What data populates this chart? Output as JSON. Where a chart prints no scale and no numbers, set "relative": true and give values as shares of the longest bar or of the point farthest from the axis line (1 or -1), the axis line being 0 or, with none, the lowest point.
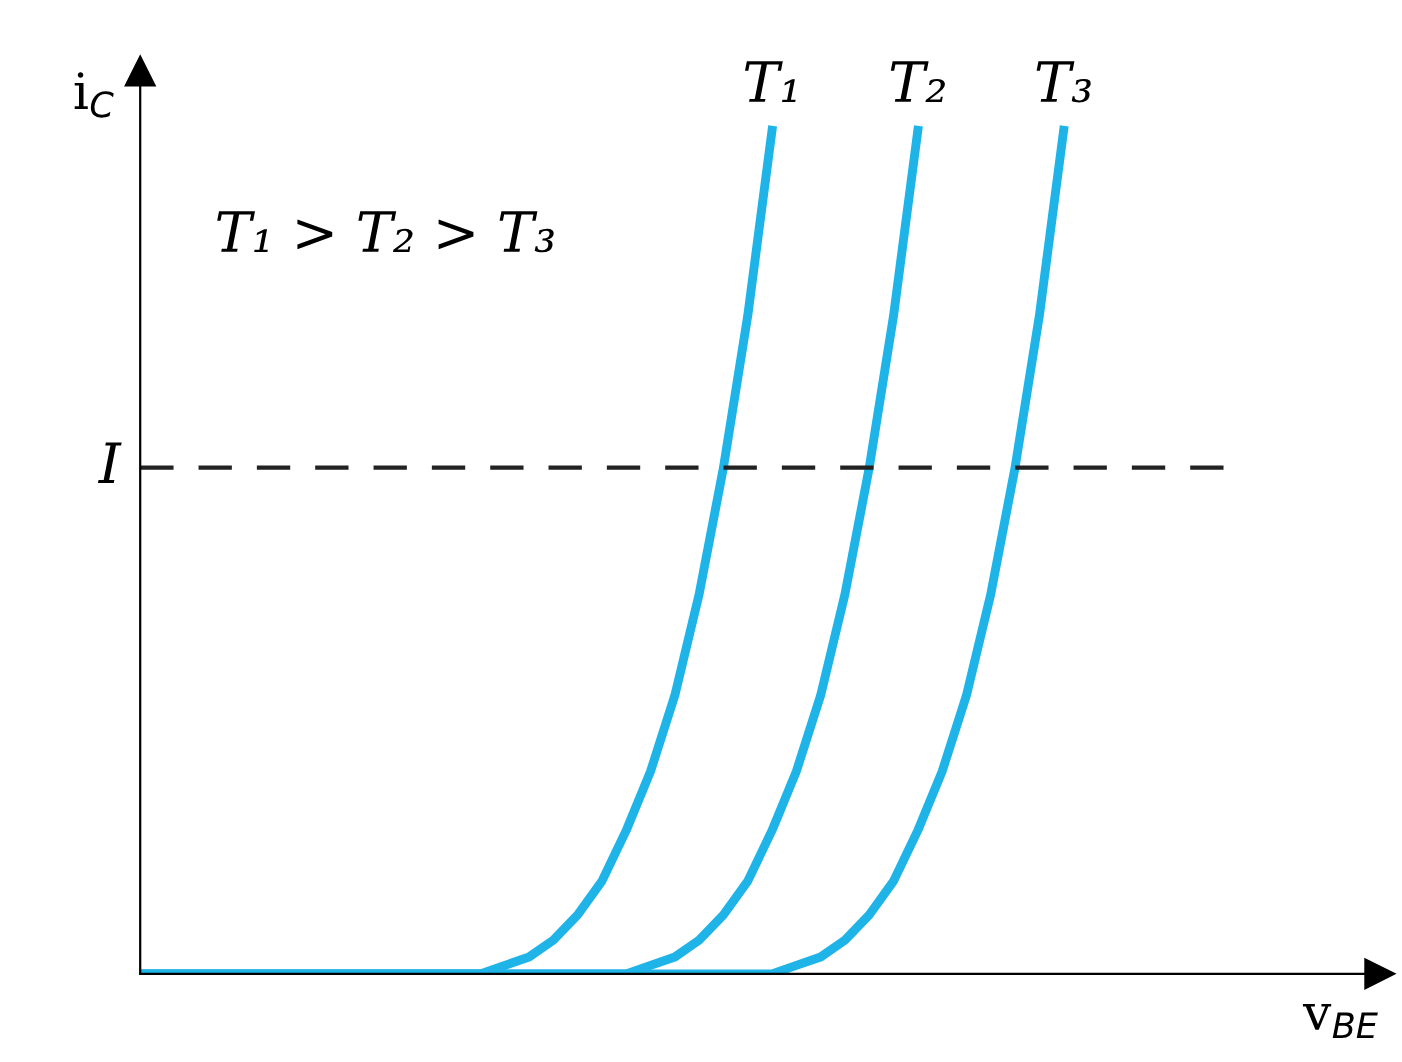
{
  "chart_data": {
    "type": "line",
    "relative": true,
    "xlabel": "v$_{BE}$",
    "ylabel": "i$_{C}$",
    "categories": [
      null,
      null,
      null,
      null,
      null,
      null,
      null,
      null,
      null,
      null,
      null,
      null,
      null,
      null,
      null,
      null,
      null,
      null,
      null,
      null,
      null,
      null,
      null,
      null,
      null,
      null,
      null,
      null,
      null,
      null,
      null,
      null,
      null,
      null,
      null,
      null,
      null,
      null,
      null,
      null,
      null,
      null,
      null,
      null,
      null,
      null,
      null,
      null,
      null,
      null,
      null,
      null
    ],
    "series": [
      {
        "name": "T₁",
        "color": "#1fb4e8",
        "values": [
          0,
          0,
          0,
          0,
          0,
          0,
          0,
          0,
          0,
          0,
          0,
          0,
          0,
          0,
          0,
          0.01,
          0.02,
          0.04,
          0.07,
          0.11,
          0.17,
          0.24,
          0.33,
          0.45,
          0.6,
          0.78,
          1,
          null,
          null,
          null,
          null,
          null,
          null,
          null,
          null,
          null,
          null,
          null,
          null,
          null,
          null,
          null,
          null,
          null,
          null,
          null,
          null,
          null,
          null,
          null,
          null,
          null
        ]
      },
      {
        "name": "T₂",
        "color": "#1fb4e8",
        "values": [
          0,
          0,
          0,
          0,
          0,
          0,
          0,
          0,
          0,
          0,
          0,
          0,
          0,
          0,
          0,
          0,
          0,
          0,
          0,
          0,
          0,
          0.01,
          0.02,
          0.04,
          0.07,
          0.11,
          0.17,
          0.24,
          0.33,
          0.45,
          0.6,
          0.78,
          1,
          null,
          null,
          null,
          null,
          null,
          null,
          null,
          null,
          null,
          null,
          null,
          null,
          null,
          null,
          null,
          null,
          null,
          null,
          null
        ]
      },
      {
        "name": "T₃",
        "color": "#1fb4e8",
        "values": [
          0,
          0,
          0,
          0,
          0,
          0,
          0,
          0,
          0,
          0,
          0,
          0,
          0,
          0,
          0,
          0,
          0,
          0,
          0,
          0,
          0,
          0,
          0,
          0,
          0,
          0,
          0,
          0.01,
          0.02,
          0.04,
          0.07,
          0.11,
          0.17,
          0.24,
          0.33,
          0.45,
          0.6,
          0.78,
          1,
          null,
          null,
          null,
          null,
          null,
          null,
          null,
          null,
          null,
          null,
          null,
          null,
          null
        ]
      }
    ],
    "ref_lines": [
      {
        "axis": "y",
        "value": 0.6,
        "label": "I",
        "color": "#222222",
        "line_style": "dashed"
      }
    ],
    "annotations": [
      "T₁ > T₂ > T₃"
    ],
    "line_style": "solid",
    "marker": "none",
    "grid": false,
    "legend": false
  }
}
